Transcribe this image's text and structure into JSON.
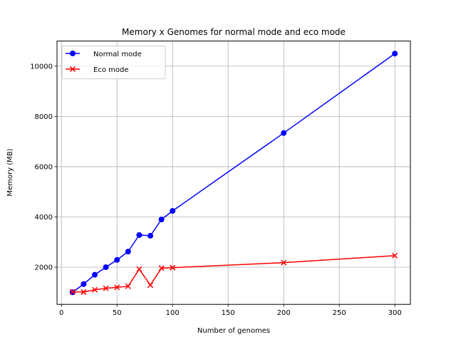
{
  "chart_data": {
    "type": "line",
    "title": "Memory x Genomes for normal mode and eco mode",
    "xlabel": "Number of genomes",
    "ylabel": "Memory (MB)",
    "xlim": [
      -4,
      314
    ],
    "ylim": [
      520,
      11000
    ],
    "xticks": [
      0,
      50,
      100,
      150,
      200,
      250,
      300
    ],
    "yticks": [
      2000,
      4000,
      6000,
      8000,
      10000
    ],
    "grid": true,
    "legend_position": "upper-left",
    "series": [
      {
        "name": "Normal mode",
        "color": "#0000ff",
        "marker": "circle",
        "x": [
          10,
          20,
          30,
          40,
          50,
          60,
          70,
          80,
          90,
          100,
          200,
          300
        ],
        "y": [
          1000,
          1330,
          1700,
          2000,
          2290,
          2620,
          3280,
          3250,
          3900,
          4240,
          7340,
          10500
        ]
      },
      {
        "name": "Eco mode",
        "color": "#ff0000",
        "marker": "x",
        "x": [
          10,
          20,
          30,
          40,
          50,
          60,
          70,
          80,
          90,
          100,
          200,
          300
        ],
        "y": [
          1020,
          1010,
          1100,
          1160,
          1200,
          1240,
          1920,
          1290,
          1960,
          1980,
          2180,
          2460
        ]
      }
    ]
  }
}
